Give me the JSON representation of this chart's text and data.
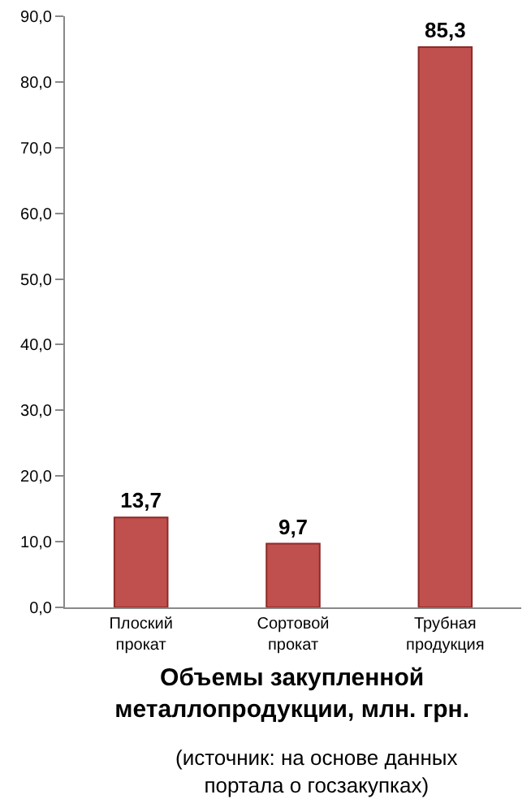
{
  "chart_data": {
    "type": "bar",
    "title": "Объемы закупленной металлопродукции, млн. грн.",
    "annotations": [
      "(источник: на основе данных портала о госзакупках)"
    ],
    "categories": [
      "Плоский  прокат",
      "Сортовой прокат",
      "Трубная продукция"
    ],
    "values": [
      13.7,
      9.7,
      85.3
    ],
    "value_labels": [
      "13,7",
      "9,7",
      "85,3"
    ],
    "color": "#c0504d",
    "ylim": [
      0,
      90
    ],
    "yticks": [
      {
        "value": 0,
        "label": "0,0"
      },
      {
        "value": 10,
        "label": "10,0"
      },
      {
        "value": 20,
        "label": "20,0"
      },
      {
        "value": 30,
        "label": "30,0"
      },
      {
        "value": 40,
        "label": "40,0"
      },
      {
        "value": 50,
        "label": "50,0"
      },
      {
        "value": 60,
        "label": "60,0"
      },
      {
        "value": 70,
        "label": "70,0"
      },
      {
        "value": 80,
        "label": "80,0"
      },
      {
        "value": 90,
        "label": "90,0"
      }
    ]
  }
}
